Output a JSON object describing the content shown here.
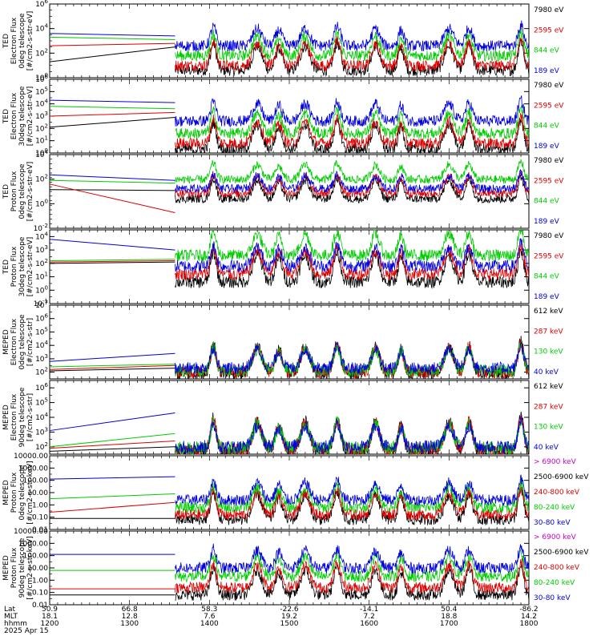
{
  "footer": {
    "row_labels": [
      "Lat",
      "MLT",
      "hhmm"
    ],
    "ticks": [
      {
        "lat": "50.9",
        "mlt": "18.1",
        "hhmm": "1200"
      },
      {
        "lat": "66.8",
        "mlt": "12.8",
        "hhmm": "1300"
      },
      {
        "lat": "58.3",
        "mlt": "7.6",
        "hhmm": "1400"
      },
      {
        "lat": "-22.6",
        "mlt": "19.2",
        "hhmm": "1500"
      },
      {
        "lat": "-14.1",
        "mlt": "7.2",
        "hhmm": "1600"
      },
      {
        "lat": "50.4",
        "mlt": "18.8",
        "hhmm": "1700"
      },
      {
        "lat": "-86.2",
        "mlt": "14.2",
        "hhmm": "1800"
      }
    ],
    "date": "2025 Apr 15"
  },
  "chart_data": [
    {
      "type": "line",
      "ylabel_lines": [
        "TED",
        "Electron Flux",
        "0deg telescope",
        "[#/cm2-s-str-eV]"
      ],
      "ytick_labels": [
        "10^0",
        "10^2",
        "10^4",
        "10^6"
      ],
      "ylim_log": [
        0,
        6
      ],
      "xlim": [
        1200,
        1800
      ],
      "legend": [
        {
          "label": "7980 eV",
          "color": "#000000"
        },
        {
          "label": "2595 eV",
          "color": "#dd0000"
        },
        {
          "label": "844 eV",
          "color": "#00cc00"
        },
        {
          "label": "189 eV",
          "color": "#0000dd"
        }
      ],
      "series": [
        {
          "color": "#000000",
          "points": [
            [
              1200,
              1.3
            ],
            [
              1357,
              2.5
            ]
          ],
          "bg": 0.6
        },
        {
          "color": "#dd0000",
          "points": [
            [
              1200,
              2.6
            ],
            [
              1357,
              2.8
            ]
          ],
          "bg": 1.0
        },
        {
          "color": "#00cc00",
          "points": [
            [
              1200,
              3.3
            ],
            [
              1357,
              3.1
            ]
          ],
          "bg": 1.8
        },
        {
          "color": "#0000dd",
          "points": [
            [
              1200,
              3.6
            ],
            [
              1357,
              3.4
            ]
          ],
          "bg": 2.6
        }
      ]
    },
    {
      "type": "line",
      "ylabel_lines": [
        "TED",
        "Electron Flux",
        "30deg telescope",
        "[#/cm2-s-str-eV]"
      ],
      "ytick_labels": [
        "10^0",
        "10^1",
        "10^2",
        "10^3",
        "10^4",
        "10^5",
        "10^6"
      ],
      "ylim_log": [
        0,
        6
      ],
      "xlim": [
        1200,
        1800
      ],
      "legend": [
        {
          "label": "7980 eV",
          "color": "#000000"
        },
        {
          "label": "2595 eV",
          "color": "#dd0000"
        },
        {
          "label": "844 eV",
          "color": "#00cc00"
        },
        {
          "label": "189 eV",
          "color": "#0000dd"
        }
      ],
      "series": [
        {
          "color": "#000000",
          "points": [
            [
              1200,
              2.1
            ],
            [
              1357,
              2.9
            ]
          ],
          "bg": 0.3
        },
        {
          "color": "#dd0000",
          "points": [
            [
              1200,
              3.0
            ],
            [
              1357,
              3.3
            ]
          ],
          "bg": 0.8
        },
        {
          "color": "#00cc00",
          "points": [
            [
              1200,
              3.8
            ],
            [
              1357,
              3.6
            ]
          ],
          "bg": 1.6
        },
        {
          "color": "#0000dd",
          "points": [
            [
              1200,
              4.3
            ],
            [
              1357,
              4.1
            ]
          ],
          "bg": 2.6
        }
      ]
    },
    {
      "type": "line",
      "ylabel_lines": [
        "TED",
        "Proton Flux",
        "0deg telescope",
        "[#/cm2-s-str-eV]"
      ],
      "ytick_labels": [
        "10^-2",
        "10^0",
        "10^2",
        "10^4"
      ],
      "ylim_log": [
        -3,
        5
      ],
      "xlim": [
        1200,
        1800
      ],
      "legend": [
        {
          "label": "7980 eV",
          "color": "#000000"
        },
        {
          "label": "2595 eV",
          "color": "#dd0000"
        },
        {
          "label": "844 eV",
          "color": "#00cc00"
        },
        {
          "label": "189 eV",
          "color": "#0000dd"
        }
      ],
      "series": [
        {
          "color": "#000000",
          "points": [
            [
              1200,
              1.2
            ],
            [
              1357,
              1.1
            ]
          ],
          "bg": 0.2
        },
        {
          "color": "#dd0000",
          "points": [
            [
              1200,
              1.8
            ],
            [
              1357,
              -1.3
            ]
          ],
          "bg": 0.8
        },
        {
          "color": "#00cc00",
          "points": [
            [
              1200,
              2.2
            ],
            [
              1357,
              1.9
            ]
          ],
          "bg": 2.3
        },
        {
          "color": "#0000dd",
          "points": [
            [
              1200,
              2.8
            ],
            [
              1357,
              2.2
            ]
          ],
          "bg": 1.3
        }
      ]
    },
    {
      "type": "line",
      "ylabel_lines": [
        "TED",
        "Proton Flux",
        "30deg telescope",
        "[#/cm2-s-str-eV]"
      ],
      "ytick_labels": [
        "10^-1",
        "10^0",
        "10^1",
        "10^2",
        "10^3",
        "10^4"
      ],
      "ylim_log": [
        -1,
        4.5
      ],
      "xlim": [
        1200,
        1800
      ],
      "legend": [
        {
          "label": "7980 eV",
          "color": "#000000"
        },
        {
          "label": "2595 eV",
          "color": "#dd0000"
        },
        {
          "label": "844 eV",
          "color": "#00cc00"
        },
        {
          "label": "189 eV",
          "color": "#0000dd"
        }
      ],
      "series": [
        {
          "color": "#000000",
          "points": [
            [
              1200,
              2.0
            ],
            [
              1357,
              2.1
            ]
          ],
          "bg": 0.6
        },
        {
          "color": "#dd0000",
          "points": [
            [
              1200,
              2.1
            ],
            [
              1357,
              2.2
            ]
          ],
          "bg": 1.2
        },
        {
          "color": "#00cc00",
          "points": [
            [
              1200,
              2.2
            ],
            [
              1357,
              2.3
            ]
          ],
          "bg": 2.6
        },
        {
          "color": "#0000dd",
          "points": [
            [
              1200,
              3.8
            ],
            [
              1357,
              3.0
            ]
          ],
          "bg": 1.8
        }
      ]
    },
    {
      "type": "line",
      "ylabel_lines": [
        "MEPED",
        "Electron Flux",
        "0deg telescope",
        "[#/cm2-s-str]"
      ],
      "ytick_labels": [
        "10^2",
        "10^3",
        "10^4",
        "10^5",
        "10^6",
        "10^7"
      ],
      "ylim_log": [
        1.5,
        7
      ],
      "xlim": [
        1200,
        1800
      ],
      "legend": [
        {
          "label": "612 keV",
          "color": "#000000"
        },
        {
          "label": "287 keV",
          "color": "#dd0000"
        },
        {
          "label": "130 keV",
          "color": "#00cc00"
        },
        {
          "label": "40 keV",
          "color": "#0000dd"
        }
      ],
      "series": [
        {
          "color": "#000000",
          "points": [
            [
              1200,
              2.1
            ],
            [
              1357,
              2.3
            ]
          ],
          "bg": 1.9
        },
        {
          "color": "#dd0000",
          "points": [
            [
              1200,
              2.2
            ],
            [
              1357,
              2.5
            ]
          ],
          "bg": 2.0
        },
        {
          "color": "#00cc00",
          "points": [
            [
              1200,
              2.4
            ],
            [
              1357,
              2.6
            ]
          ],
          "bg": 2.1
        },
        {
          "color": "#0000dd",
          "points": [
            [
              1200,
              2.8
            ],
            [
              1357,
              3.4
            ]
          ],
          "bg": 2.3
        }
      ]
    },
    {
      "type": "line",
      "ylabel_lines": [
        "MEPED",
        "Electron Flux",
        "90deg telescope",
        "[#/cm2-s-str]"
      ],
      "ytick_labels": [
        "10^2",
        "10^3",
        "10^4",
        "10^5",
        "10^6"
      ],
      "ylim_log": [
        1.5,
        6.5
      ],
      "xlim": [
        1200,
        1800
      ],
      "legend": [
        {
          "label": "612 keV",
          "color": "#000000"
        },
        {
          "label": "287 keV",
          "color": "#dd0000"
        },
        {
          "label": "130 keV",
          "color": "#00cc00"
        },
        {
          "label": "40 keV",
          "color": "#0000dd"
        }
      ],
      "series": [
        {
          "color": "#000000",
          "points": [
            [
              1200,
              1.7
            ],
            [
              1357,
              2.0
            ]
          ],
          "bg": 1.7
        },
        {
          "color": "#dd0000",
          "points": [
            [
              1200,
              1.9
            ],
            [
              1357,
              2.4
            ]
          ],
          "bg": 1.8
        },
        {
          "color": "#00cc00",
          "points": [
            [
              1200,
              2.0
            ],
            [
              1357,
              2.9
            ]
          ],
          "bg": 1.9
        },
        {
          "color": "#0000dd",
          "points": [
            [
              1200,
              3.1
            ],
            [
              1357,
              4.3
            ]
          ],
          "bg": 2.0
        }
      ]
    },
    {
      "type": "line",
      "ylabel_lines": [
        "MEPED",
        "Proton Flux",
        "0deg telescope",
        "[#/cm2-s-str-keV]"
      ],
      "ytick_labels": [
        "0.01",
        "0.10",
        "1.00",
        "10.00",
        "100.00",
        "1000.00",
        "10000.00"
      ],
      "ylim_log": [
        -2,
        4
      ],
      "xlim": [
        1200,
        1800
      ],
      "legend": [
        {
          "label": "> 6900 keV",
          "color": "#cc00cc"
        },
        {
          "label": "2500-6900 keV",
          "color": "#000000"
        },
        {
          "label": "240-800 keV",
          "color": "#dd0000"
        },
        {
          "label": "80-240 keV",
          "color": "#00cc00"
        },
        {
          "label": "30-80 keV",
          "color": "#0000dd"
        }
      ],
      "series": [
        {
          "color": "#000000",
          "points": [
            [
              1200,
              -1.1
            ],
            [
              1357,
              -1.1
            ]
          ],
          "bg": -1.2
        },
        {
          "color": "#dd0000",
          "points": [
            [
              1200,
              -0.6
            ],
            [
              1357,
              0.2
            ]
          ],
          "bg": -0.8
        },
        {
          "color": "#00cc00",
          "points": [
            [
              1200,
              0.5
            ],
            [
              1357,
              0.9
            ]
          ],
          "bg": -0.2
        },
        {
          "color": "#0000dd",
          "points": [
            [
              1200,
              2.1
            ],
            [
              1357,
              2.3
            ]
          ],
          "bg": 0.4
        }
      ]
    },
    {
      "type": "line",
      "ylabel_lines": [
        "MEPED",
        "Proton Flux",
        "90deg telescope",
        "[#/cm2-s-str-keV]"
      ],
      "ytick_labels": [
        "0.01",
        "0.10",
        "1.00",
        "10.00",
        "100.00",
        "1000.00",
        "10000.00"
      ],
      "ylim_log": [
        -2,
        4
      ],
      "xlim": [
        1200,
        1800
      ],
      "legend": [
        {
          "label": "> 6900 keV",
          "color": "#cc00cc"
        },
        {
          "label": "2500-6900 keV",
          "color": "#000000"
        },
        {
          "label": "240-800 keV",
          "color": "#dd0000"
        },
        {
          "label": "80-240 keV",
          "color": "#00cc00"
        },
        {
          "label": "30-80 keV",
          "color": "#0000dd"
        }
      ],
      "series": [
        {
          "color": "#000000",
          "points": [
            [
              1200,
              -1.2
            ],
            [
              1357,
              -1.2
            ]
          ],
          "bg": -1.2
        },
        {
          "color": "#dd0000",
          "points": [
            [
              1200,
              -0.7
            ],
            [
              1357,
              -0.7
            ]
          ],
          "bg": -0.6
        },
        {
          "color": "#00cc00",
          "points": [
            [
              1200,
              0.8
            ],
            [
              1357,
              0.8
            ]
          ],
          "bg": 0.3
        },
        {
          "color": "#0000dd",
          "points": [
            [
              1200,
              2.1
            ],
            [
              1357,
              2.1
            ]
          ],
          "bg": 1.0
        }
      ]
    }
  ]
}
